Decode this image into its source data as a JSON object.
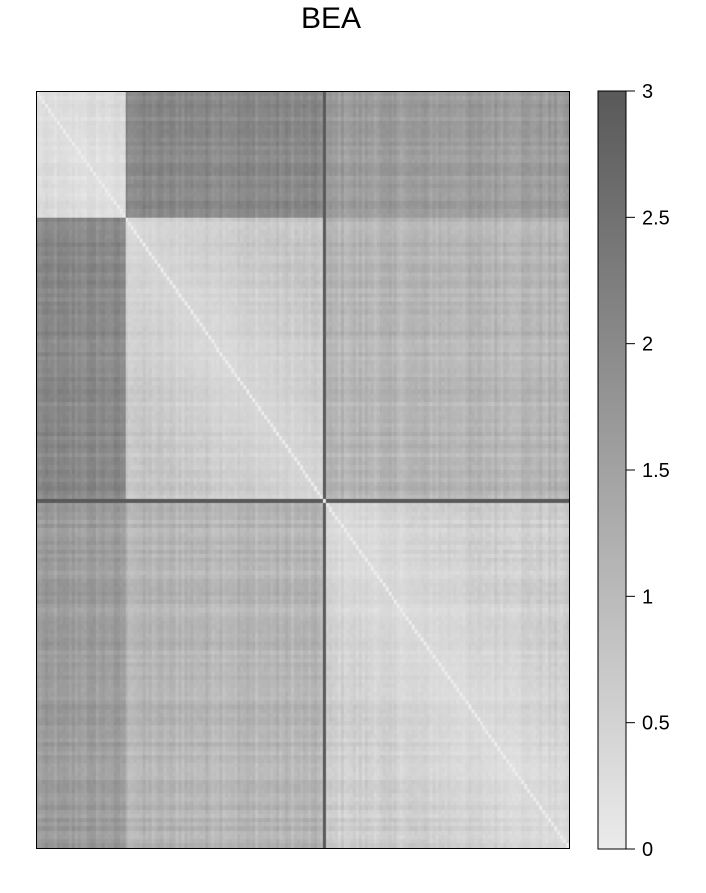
{
  "chart_data": {
    "type": "heatmap",
    "title": "BEA",
    "xlabel": "",
    "ylabel": "",
    "colorbar": {
      "min": 0,
      "max": 3,
      "ticks": [
        0,
        0.5,
        1,
        1.5,
        2,
        2.5,
        3
      ],
      "tick_labels": [
        "0",
        "0.5",
        "1",
        "1.5",
        "2",
        "2.5",
        "3"
      ],
      "color_low": "#ebebeb",
      "color_high": "#595959"
    },
    "matrix_size": 180,
    "blocks": [
      {
        "from": 0,
        "to": 30,
        "within_mean": 0.4
      },
      {
        "from": 30,
        "to": 98,
        "within_mean": 0.75
      },
      {
        "from": 98,
        "to": 180,
        "within_mean": 0.6
      }
    ],
    "between_block_mean": {
      "block1_block2": 2.0,
      "block1_block3": 1.6,
      "block2_block3": 1.1
    },
    "separator_index": 97,
    "separator_value": 3.0,
    "diagonal_value": 0
  }
}
